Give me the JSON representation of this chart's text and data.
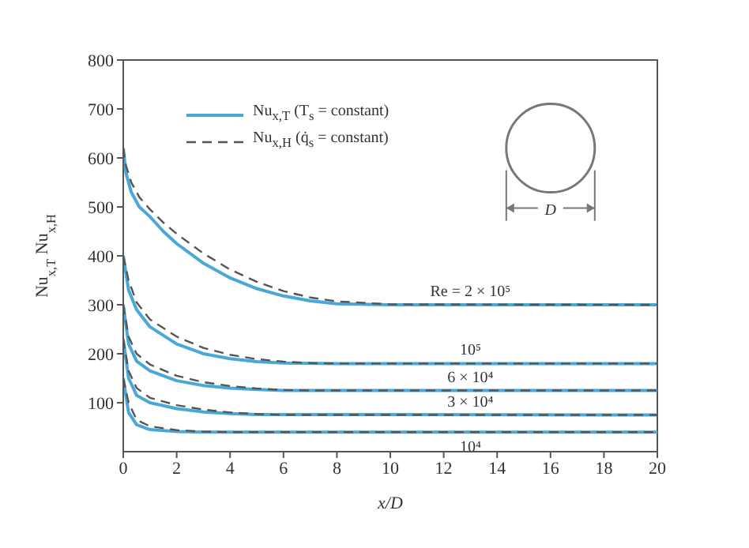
{
  "chart_data": {
    "type": "line",
    "xlabel": "x/D",
    "ylabel": "Nu$_{x,T}$ Nu$_{x,H}$",
    "xlim": [
      0,
      20
    ],
    "xticks": [
      0,
      2,
      4,
      6,
      8,
      10,
      12,
      14,
      16,
      18,
      20
    ],
    "ylim": [
      0,
      800
    ],
    "yticks": [
      100,
      200,
      300,
      400,
      500,
      600,
      700,
      800
    ],
    "legend": "top left",
    "marker": "none",
    "series": [
      {
        "name": "Nu$_{x,T}$ (T$_{s}$ = constant)",
        "color": "#4aa8d8",
        "line_style": "solid",
        "x": [
          0,
          0.1,
          0.3,
          0.6,
          1,
          1.5,
          2,
          3,
          4,
          5,
          6,
          7,
          8,
          10,
          20
        ],
        "values": [
          620,
          570,
          530,
          500,
          480,
          450,
          425,
          385,
          355,
          333,
          318,
          308,
          302,
          300,
          300
        ]
      },
      {
        "name": "Nu$_{x,H}$ (q̇$_{s}$ = constant)",
        "color": "#555555",
        "line_style": "dashed",
        "x": [
          0,
          0.1,
          0.3,
          0.6,
          1,
          1.5,
          2,
          3,
          4,
          5,
          6,
          7,
          8,
          10,
          20
        ],
        "values": [
          620,
          585,
          550,
          520,
          495,
          468,
          445,
          405,
          372,
          347,
          328,
          315,
          307,
          301,
          300
        ]
      },
      {
        "color": "#4aa8d8",
        "line_style": "solid",
        "x": [
          0,
          0.2,
          0.5,
          1,
          2,
          3,
          4,
          5,
          6,
          8,
          20
        ],
        "values": [
          400,
          330,
          290,
          255,
          220,
          200,
          190,
          184,
          181,
          180,
          180
        ]
      },
      {
        "color": "#555555",
        "line_style": "dashed",
        "x": [
          0,
          0.2,
          0.5,
          1,
          2,
          3,
          4,
          5,
          6,
          7,
          8,
          20
        ],
        "values": [
          400,
          350,
          305,
          270,
          235,
          212,
          198,
          189,
          184,
          181,
          180,
          180
        ]
      },
      {
        "color": "#4aa8d8",
        "line_style": "solid",
        "x": [
          0,
          0.2,
          0.5,
          1,
          2,
          3,
          4,
          5,
          6,
          20
        ],
        "values": [
          300,
          220,
          185,
          165,
          145,
          135,
          130,
          127,
          125,
          125
        ]
      },
      {
        "color": "#555555",
        "line_style": "dashed",
        "x": [
          0,
          0.2,
          0.5,
          1,
          2,
          3,
          4,
          5,
          6,
          7,
          20
        ],
        "values": [
          300,
          235,
          200,
          178,
          155,
          142,
          134,
          129,
          126,
          125,
          125
        ]
      },
      {
        "color": "#4aa8d8",
        "line_style": "solid",
        "x": [
          0,
          0.2,
          0.5,
          1,
          2,
          3,
          4,
          5,
          20
        ],
        "values": [
          230,
          150,
          115,
          100,
          88,
          81,
          78,
          76,
          75
        ]
      },
      {
        "color": "#555555",
        "line_style": "dashed",
        "x": [
          0,
          0.2,
          0.5,
          1,
          2,
          3,
          4,
          5,
          6,
          20
        ],
        "values": [
          230,
          165,
          130,
          110,
          95,
          86,
          80,
          77,
          75,
          75
        ]
      },
      {
        "color": "#4aa8d8",
        "line_style": "solid",
        "x": [
          0,
          0.2,
          0.5,
          1,
          2,
          3,
          20
        ],
        "values": [
          150,
          80,
          55,
          45,
          41,
          40,
          40
        ]
      },
      {
        "color": "#555555",
        "line_style": "dashed",
        "x": [
          0,
          0.2,
          0.5,
          1,
          2,
          3,
          4,
          20
        ],
        "values": [
          150,
          100,
          65,
          52,
          44,
          41,
          40,
          40
        ]
      }
    ],
    "annotations": [
      "Re = 2 × 10⁵",
      "10⁵",
      "6 × 10⁴",
      "3 × 10⁴",
      "10⁴",
      "D"
    ]
  }
}
